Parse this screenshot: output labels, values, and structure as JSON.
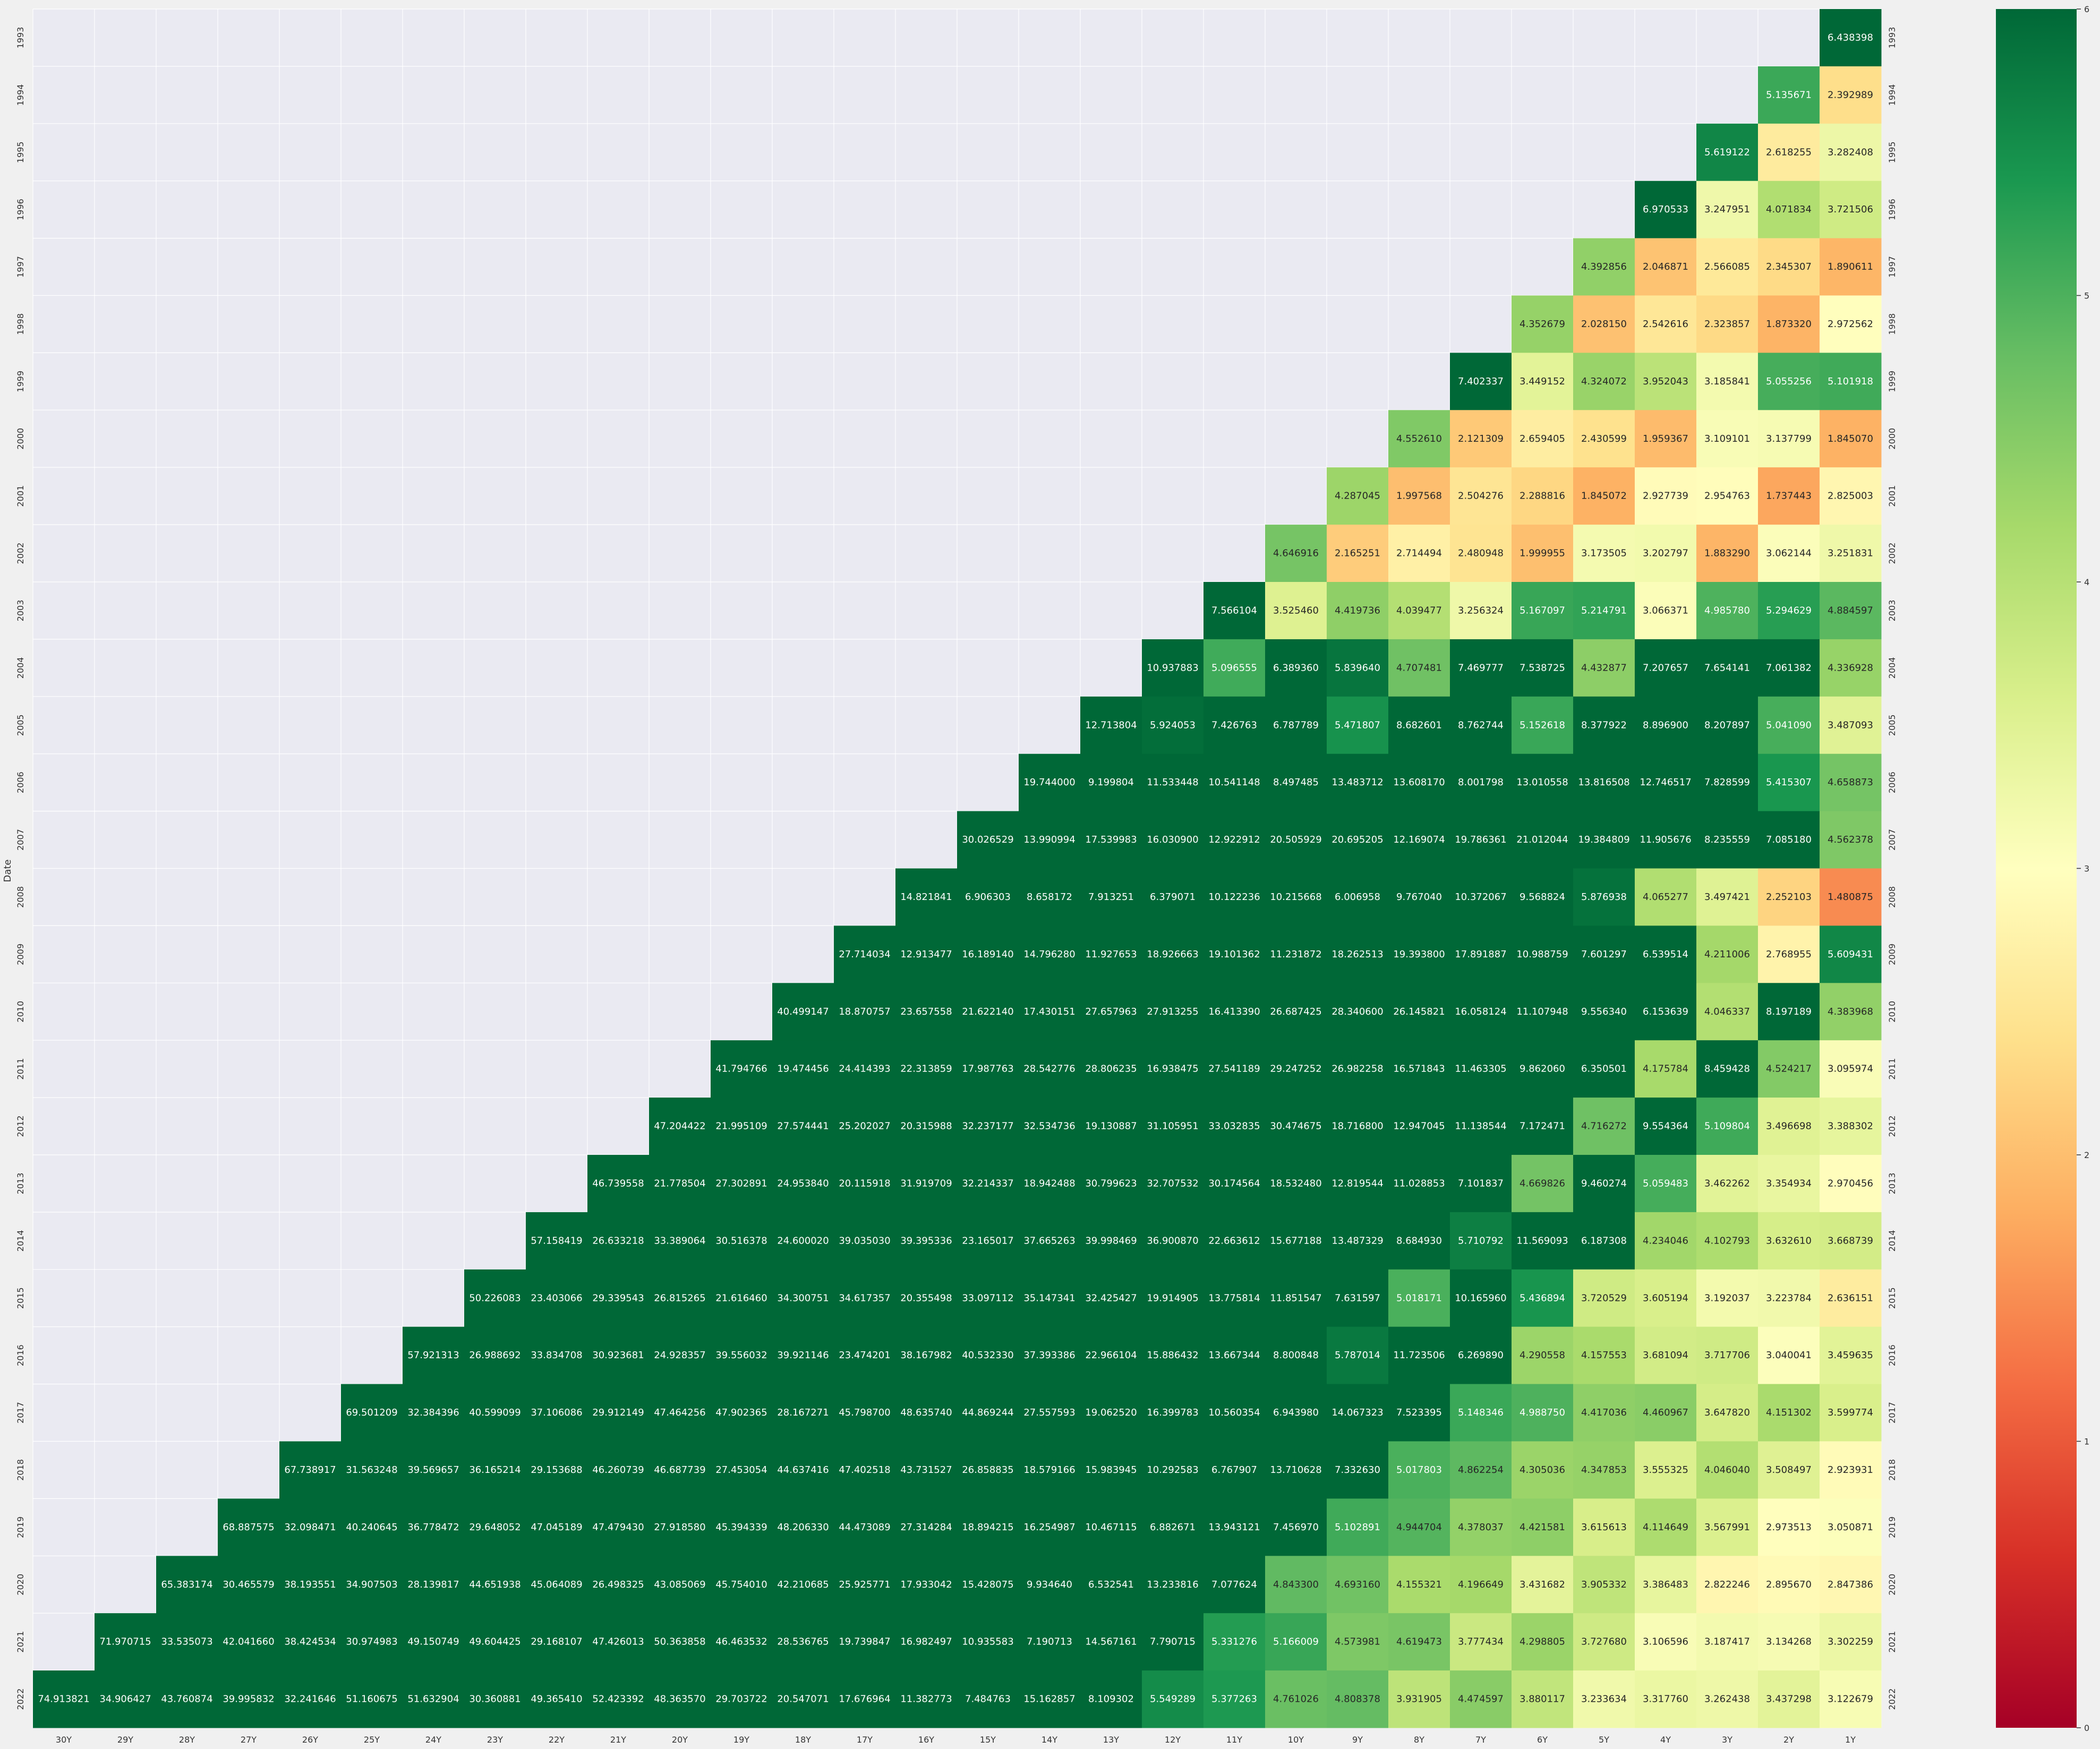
{
  "chart_data": {
    "type": "heatmap",
    "ylabel": "Date",
    "xlabel": "",
    "colormap": "RdYlGn",
    "vmin": 0,
    "vmax": 6,
    "colorbar_ticks": [
      "0",
      "1",
      "2",
      "3",
      "4",
      "5",
      "6"
    ],
    "columns": [
      "30Y",
      "29Y",
      "28Y",
      "27Y",
      "26Y",
      "25Y",
      "24Y",
      "23Y",
      "22Y",
      "21Y",
      "20Y",
      "19Y",
      "18Y",
      "17Y",
      "16Y",
      "15Y",
      "14Y",
      "13Y",
      "12Y",
      "11Y",
      "10Y",
      "9Y",
      "8Y",
      "7Y",
      "6Y",
      "5Y",
      "4Y",
      "3Y",
      "2Y",
      "1Y"
    ],
    "rows": [
      "1993",
      "1994",
      "1995",
      "1996",
      "1997",
      "1998",
      "1999",
      "2000",
      "2001",
      "2002",
      "2003",
      "2004",
      "2005",
      "2006",
      "2007",
      "2008",
      "2009",
      "2010",
      "2011",
      "2012",
      "2013",
      "2014",
      "2015",
      "2016",
      "2017",
      "2018",
      "2019",
      "2020",
      "2021",
      "2022"
    ],
    "values": [
      [
        "6.438398"
      ],
      [
        "5.135671",
        "2.392989"
      ],
      [
        "5.619122",
        "2.618255",
        "3.282408"
      ],
      [
        "6.970533",
        "3.247951",
        "4.071834",
        "3.721506"
      ],
      [
        "4.392856",
        "2.046871",
        "2.566085",
        "2.345307",
        "1.890611"
      ],
      [
        "4.352679",
        "2.028150",
        "2.542616",
        "2.323857",
        "1.873320",
        "2.972562"
      ],
      [
        "7.402337",
        "3.449152",
        "4.324072",
        "3.952043",
        "3.185841",
        "5.055256",
        "5.101918"
      ],
      [
        "4.552610",
        "2.121309",
        "2.659405",
        "2.430599",
        "1.959367",
        "3.109101",
        "3.137799",
        "1.845070"
      ],
      [
        "4.287045",
        "1.997568",
        "2.504276",
        "2.288816",
        "1.845072",
        "2.927739",
        "2.954763",
        "1.737443",
        "2.825003"
      ],
      [
        "4.646916",
        "2.165251",
        "2.714494",
        "2.480948",
        "1.999955",
        "3.173505",
        "3.202797",
        "1.883290",
        "3.062144",
        "3.251831"
      ],
      [
        "7.566104",
        "3.525460",
        "4.419736",
        "4.039477",
        "3.256324",
        "5.167097",
        "5.214791",
        "3.066371",
        "4.985780",
        "5.294629",
        "4.884597"
      ],
      [
        "10.937883",
        "5.096555",
        "6.389360",
        "5.839640",
        "4.707481",
        "7.469777",
        "7.538725",
        "4.432877",
        "7.207657",
        "7.654141",
        "7.061382",
        "4.336928"
      ],
      [
        "12.713804",
        "5.924053",
        "7.426763",
        "6.787789",
        "5.471807",
        "8.682601",
        "8.762744",
        "5.152618",
        "8.377922",
        "8.896900",
        "8.207897",
        "5.041090",
        "3.487093"
      ],
      [
        "19.744000",
        "9.199804",
        "11.533448",
        "10.541148",
        "8.497485",
        "13.483712",
        "13.608170",
        "8.001798",
        "13.010558",
        "13.816508",
        "12.746517",
        "7.828599",
        "5.415307",
        "4.658873"
      ],
      [
        "30.026529",
        "13.990994",
        "17.539983",
        "16.030900",
        "12.922912",
        "20.505929",
        "20.695205",
        "12.169074",
        "19.786361",
        "21.012044",
        "19.384809",
        "11.905676",
        "8.235559",
        "7.085180",
        "4.562378"
      ],
      [
        "14.821841",
        "6.906303",
        "8.658172",
        "7.913251",
        "6.379071",
        "10.122236",
        "10.215668",
        "6.006958",
        "9.767040",
        "10.372067",
        "9.568824",
        "5.876938",
        "4.065277",
        "3.497421",
        "2.252103",
        "1.480875"
      ],
      [
        "27.714034",
        "12.913477",
        "16.189140",
        "14.796280",
        "11.927653",
        "18.926663",
        "19.101362",
        "11.231872",
        "18.262513",
        "19.393800",
        "17.891887",
        "10.988759",
        "7.601297",
        "6.539514",
        "4.211006",
        "2.768955",
        "5.609431"
      ],
      [
        "40.499147",
        "18.870757",
        "23.657558",
        "21.622140",
        "17.430151",
        "27.657963",
        "27.913255",
        "16.413390",
        "26.687425",
        "28.340600",
        "26.145821",
        "16.058124",
        "11.107948",
        "9.556340",
        "6.153639",
        "4.046337",
        "8.197189",
        "4.383968"
      ],
      [
        "41.794766",
        "19.474456",
        "24.414393",
        "22.313859",
        "17.987763",
        "28.542776",
        "28.806235",
        "16.938475",
        "27.541189",
        "29.247252",
        "26.982258",
        "16.571843",
        "11.463305",
        "9.862060",
        "6.350501",
        "4.175784",
        "8.459428",
        "4.524217",
        "3.095974"
      ],
      [
        "47.204422",
        "21.995109",
        "27.574441",
        "25.202027",
        "20.315988",
        "32.237177",
        "32.534736",
        "19.130887",
        "31.105951",
        "33.032835",
        "30.474675",
        "18.716800",
        "12.947045",
        "11.138544",
        "7.172471",
        "4.716272",
        "9.554364",
        "5.109804",
        "3.496698",
        "3.388302"
      ],
      [
        "46.739558",
        "21.778504",
        "27.302891",
        "24.953840",
        "20.115918",
        "31.919709",
        "32.214337",
        "18.942488",
        "30.799623",
        "32.707532",
        "30.174564",
        "18.532480",
        "12.819544",
        "11.028853",
        "7.101837",
        "4.669826",
        "9.460274",
        "5.059483",
        "3.462262",
        "3.354934",
        "2.970456"
      ],
      [
        "57.158419",
        "26.633218",
        "33.389064",
        "30.516378",
        "24.600020",
        "39.035030",
        "39.395336",
        "23.165017",
        "37.665263",
        "39.998469",
        "36.900870",
        "22.663612",
        "15.677188",
        "13.487329",
        "8.684930",
        "5.710792",
        "11.569093",
        "6.187308",
        "4.234046",
        "4.102793",
        "3.632610",
        "3.668739"
      ],
      [
        "50.226083",
        "23.403066",
        "29.339543",
        "26.815265",
        "21.616460",
        "34.300751",
        "34.617357",
        "20.355498",
        "33.097112",
        "35.147341",
        "32.425427",
        "19.914905",
        "13.775814",
        "11.851547",
        "7.631597",
        "5.018171",
        "10.165960",
        "5.436894",
        "3.720529",
        "3.605194",
        "3.192037",
        "3.223784",
        "2.636151"
      ],
      [
        "57.921313",
        "26.988692",
        "33.834708",
        "30.923681",
        "24.928357",
        "39.556032",
        "39.921146",
        "23.474201",
        "38.167982",
        "40.532330",
        "37.393386",
        "22.966104",
        "15.886432",
        "13.667344",
        "8.800848",
        "5.787014",
        "11.723506",
        "6.269890",
        "4.290558",
        "4.157553",
        "3.681094",
        "3.717706",
        "3.040041",
        "3.459635"
      ],
      [
        "69.501209",
        "32.384396",
        "40.599099",
        "37.106086",
        "29.912149",
        "47.464256",
        "47.902365",
        "28.167271",
        "45.798700",
        "48.635740",
        "44.869244",
        "27.557593",
        "19.062520",
        "16.399783",
        "10.560354",
        "6.943980",
        "14.067323",
        "7.523395",
        "5.148346",
        "4.988750",
        "4.417036",
        "4.460967",
        "3.647820",
        "4.151302",
        "3.599774"
      ],
      [
        "67.738917",
        "31.563248",
        "39.569657",
        "36.165214",
        "29.153688",
        "46.260739",
        "46.687739",
        "27.453054",
        "44.637416",
        "47.402518",
        "43.731527",
        "26.858835",
        "18.579166",
        "15.983945",
        "10.292583",
        "6.767907",
        "13.710628",
        "7.332630",
        "5.017803",
        "4.862254",
        "4.305036",
        "4.347853",
        "3.555325",
        "4.046040",
        "3.508497",
        "2.923931"
      ],
      [
        "68.887575",
        "32.098471",
        "40.240645",
        "36.778472",
        "29.648052",
        "47.045189",
        "47.479430",
        "27.918580",
        "45.394339",
        "48.206330",
        "44.473089",
        "27.314284",
        "18.894215",
        "16.254987",
        "10.467115",
        "6.882671",
        "13.943121",
        "7.456970",
        "5.102891",
        "4.944704",
        "4.378037",
        "4.421581",
        "3.615613",
        "4.114649",
        "3.567991",
        "2.973513",
        "3.050871"
      ],
      [
        "65.383174",
        "30.465579",
        "38.193551",
        "34.907503",
        "28.139817",
        "44.651938",
        "45.064089",
        "26.498325",
        "43.085069",
        "45.754010",
        "42.210685",
        "25.925771",
        "17.933042",
        "15.428075",
        "9.934640",
        "6.532541",
        "13.233816",
        "7.077624",
        "4.843300",
        "4.693160",
        "4.155321",
        "4.196649",
        "3.431682",
        "3.905332",
        "3.386483",
        "2.822246",
        "2.895670",
        "2.847386"
      ],
      [
        "71.970715",
        "33.535073",
        "42.041660",
        "38.424534",
        "30.974983",
        "49.150749",
        "49.604425",
        "29.168107",
        "47.426013",
        "50.363858",
        "46.463532",
        "28.536765",
        "19.739847",
        "16.982497",
        "10.935583",
        "7.190713",
        "14.567161",
        "7.790715",
        "5.331276",
        "5.166009",
        "4.573981",
        "4.619473",
        "3.777434",
        "4.298805",
        "3.727680",
        "3.106596",
        "3.187417",
        "3.134268",
        "3.302259"
      ],
      [
        "74.913821",
        "34.906427",
        "43.760874",
        "39.995832",
        "32.241646",
        "51.160675",
        "51.632904",
        "30.360881",
        "49.365410",
        "52.423392",
        "48.363570",
        "29.703722",
        "20.547071",
        "17.676964",
        "11.382773",
        "7.484763",
        "15.162857",
        "8.109302",
        "5.549289",
        "5.377263",
        "4.761026",
        "4.808378",
        "3.931905",
        "4.474597",
        "3.880117",
        "3.233634",
        "3.317760",
        "3.262438",
        "3.437298",
        "3.122679"
      ]
    ]
  }
}
